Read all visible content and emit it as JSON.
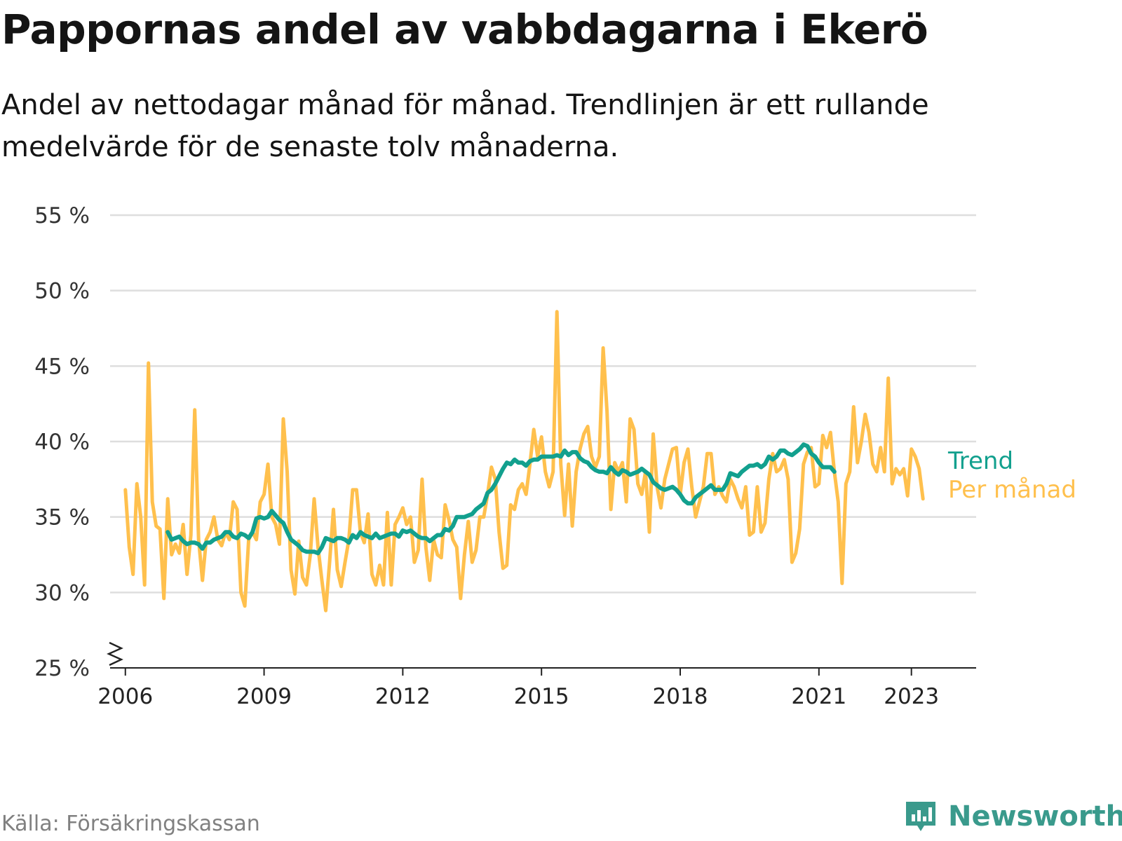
{
  "title": "Pappornas andel av vabbdagarna i Ekerö",
  "subtitle": "Andel av nettodagar månad för månad. Trendlinjen är ett rullande medelvärde för de senaste tolv månaderna.",
  "source": "Källa: Försäkringskassan",
  "brand": {
    "name": "Newsworthy",
    "icon": "newsworthy-logo-icon",
    "color": "#3a9a8c"
  },
  "chart_data": {
    "type": "line",
    "ylim": [
      25,
      55
    ],
    "xlim": [
      2005.67,
      2024.4
    ],
    "y_ticks": [
      25,
      30,
      35,
      40,
      45,
      50,
      55
    ],
    "y_tick_labels": [
      "25 %",
      "30 %",
      "35 %",
      "40 %",
      "45 %",
      "50 %",
      "55 %"
    ],
    "x_ticks": [
      2006,
      2009,
      2012,
      2015,
      2018,
      2021,
      2023
    ],
    "x_tick_labels": [
      "2006",
      "2009",
      "2012",
      "2015",
      "2018",
      "2021",
      "2023"
    ],
    "axis_break": true,
    "grid": true,
    "legend": "end-of-line labels",
    "series": [
      {
        "name": "Per månad",
        "color": "#ffc04d",
        "x_start": 2006.0,
        "x_step": 0.0833333,
        "values": [
          36.8,
          33.0,
          31.2,
          37.2,
          35.0,
          30.5,
          45.2,
          36.0,
          34.4,
          34.2,
          29.6,
          36.2,
          32.5,
          33.2,
          32.6,
          34.5,
          31.2,
          33.8,
          42.1,
          33.5,
          30.8,
          33.5,
          34.0,
          35.0,
          33.5,
          33.1,
          34.0,
          33.5,
          36.0,
          35.5,
          30.0,
          29.1,
          33.5,
          34.0,
          33.5,
          36.0,
          36.5,
          38.5,
          35.0,
          34.5,
          33.2,
          41.5,
          38.0,
          31.5,
          29.9,
          33.4,
          31.0,
          30.5,
          32.5,
          36.2,
          33.0,
          30.8,
          28.8,
          32.0,
          35.5,
          31.5,
          30.4,
          32.0,
          33.5,
          36.8,
          36.8,
          34.0,
          33.3,
          35.2,
          31.2,
          30.5,
          31.8,
          30.5,
          35.3,
          30.5,
          34.5,
          35.0,
          35.6,
          34.5,
          35.0,
          32.0,
          32.8,
          37.5,
          33.0,
          30.8,
          33.5,
          32.5,
          32.3,
          35.8,
          34.8,
          33.5,
          33.0,
          29.6,
          32.5,
          34.7,
          32.0,
          32.8,
          35.0,
          35.0,
          36.5,
          38.3,
          37.5,
          34.0,
          31.6,
          31.8,
          35.8,
          35.5,
          36.8,
          37.2,
          36.5,
          38.5,
          40.8,
          39.0,
          40.3,
          38.0,
          37.0,
          38.0,
          48.6,
          38.5,
          35.1,
          38.5,
          34.4,
          38.0,
          39.5,
          40.5,
          41.0,
          39.0,
          38.3,
          39.0,
          46.2,
          42.0,
          35.5,
          38.6,
          38.0,
          38.6,
          36.0,
          41.5,
          40.8,
          37.2,
          36.5,
          38.0,
          34.0,
          40.5,
          37.0,
          35.6,
          37.5,
          38.5,
          39.5,
          39.6,
          36.5,
          38.6,
          39.5,
          37.0,
          35.0,
          36.0,
          37.0,
          39.2,
          39.2,
          36.5,
          37.0,
          36.4,
          36.0,
          37.5,
          37.0,
          36.2,
          35.6,
          37.0,
          33.8,
          34.0,
          37.0,
          34.0,
          34.6,
          37.5,
          39.2,
          38.0,
          38.2,
          38.8,
          37.5,
          32.0,
          32.6,
          34.2,
          38.5,
          39.3,
          39.6,
          37.0,
          37.2,
          40.4,
          39.6,
          40.6,
          38.0,
          36.0,
          30.6,
          37.2,
          38.0,
          42.3,
          38.6,
          40.0,
          41.8,
          40.6,
          38.5,
          38.0,
          39.6,
          38.0,
          44.2,
          37.2,
          38.2,
          37.8,
          38.2,
          36.4,
          39.5,
          39.0,
          38.2,
          36.2
        ]
      },
      {
        "name": "Trend",
        "color": "#12a08e",
        "x_start": 2006.917,
        "x_step": 0.0833333,
        "values": [
          34.0,
          33.5,
          33.6,
          33.7,
          33.4,
          33.2,
          33.3,
          33.3,
          33.2,
          32.9,
          33.3,
          33.3,
          33.5,
          33.6,
          33.7,
          34.0,
          34.0,
          33.7,
          33.6,
          33.9,
          33.8,
          33.6,
          34.0,
          34.9,
          35.0,
          34.9,
          35.0,
          35.4,
          35.1,
          34.8,
          34.6,
          34.0,
          33.5,
          33.3,
          33.1,
          32.8,
          32.7,
          32.7,
          32.7,
          32.6,
          33.0,
          33.6,
          33.5,
          33.4,
          33.6,
          33.6,
          33.5,
          33.3,
          33.8,
          33.6,
          34.0,
          33.8,
          33.7,
          33.6,
          33.9,
          33.6,
          33.7,
          33.8,
          33.9,
          33.9,
          33.7,
          34.1,
          34.0,
          34.1,
          33.9,
          33.7,
          33.6,
          33.6,
          33.4,
          33.6,
          33.8,
          33.8,
          34.2,
          34.1,
          34.4,
          35.0,
          35.0,
          35.0,
          35.1,
          35.2,
          35.5,
          35.7,
          35.9,
          36.6,
          36.8,
          37.2,
          37.7,
          38.2,
          38.6,
          38.5,
          38.8,
          38.6,
          38.6,
          38.4,
          38.7,
          38.8,
          38.8,
          39.0,
          39.0,
          39.0,
          39.0,
          39.1,
          39.0,
          39.4,
          39.1,
          39.3,
          39.3,
          38.9,
          38.7,
          38.6,
          38.3,
          38.1,
          38.0,
          38.0,
          37.9,
          38.3,
          38.0,
          37.8,
          38.1,
          38.0,
          37.8,
          37.9,
          38.0,
          38.2,
          38.0,
          37.8,
          37.3,
          37.1,
          36.9,
          36.8,
          36.9,
          37.0,
          36.8,
          36.5,
          36.1,
          35.9,
          35.9,
          36.3,
          36.5,
          36.7,
          36.9,
          37.1,
          36.8,
          36.8,
          36.8,
          37.2,
          37.9,
          37.8,
          37.7,
          38.0,
          38.2,
          38.4,
          38.4,
          38.5,
          38.3,
          38.5,
          39.0,
          38.8,
          39.0,
          39.4,
          39.4,
          39.2,
          39.1,
          39.3,
          39.5,
          39.8,
          39.7,
          39.2,
          39.0,
          38.6,
          38.3,
          38.3,
          38.3,
          38.0
        ]
      }
    ]
  }
}
